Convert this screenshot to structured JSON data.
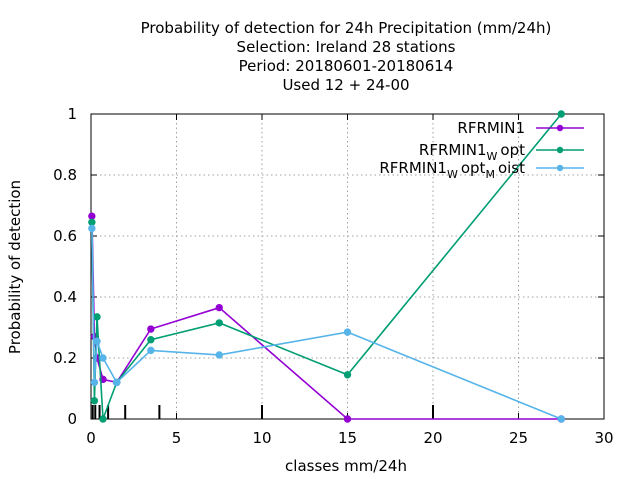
{
  "chart_data": {
    "type": "line",
    "title_lines": [
      "Probability of detection  for 24h Precipitation (mm/24h)",
      "Selection: Ireland     28 stations",
      "Period: 20180601-20180614",
      "Used  12 + 24-00"
    ],
    "xlabel": "classes mm/24h",
    "ylabel": "Probability of detection",
    "xlim": [
      0,
      30
    ],
    "ylim": [
      0,
      1
    ],
    "x_ticks": [
      "0",
      "5",
      "10",
      "15",
      "20",
      "25",
      "30"
    ],
    "y_ticks": [
      "0",
      "0.2",
      "0.4",
      "0.6",
      "0.8",
      "1"
    ],
    "grid": true,
    "legend_position": "top-right",
    "class_markers_x": [
      0.1,
      0.25,
      0.5,
      1,
      2,
      4,
      10,
      20
    ],
    "series": [
      {
        "name_parts": [
          {
            "text": "RFRMIN1",
            "sub": false
          }
        ],
        "color": "#9400d3",
        "x": [
          0.05,
          0.2,
          0.35,
          0.7,
          1.5,
          3.5,
          7.5,
          15,
          27.5
        ],
        "y": [
          0.665,
          0.27,
          0.2,
          0.13,
          0.12,
          0.295,
          0.365,
          0.0,
          0.0
        ]
      },
      {
        "name_parts": [
          {
            "text": "RFRMIN1",
            "sub": false
          },
          {
            "text": "W",
            "sub": true
          },
          {
            "text": "opt",
            "sub": false
          }
        ],
        "color": "#009e73",
        "x": [
          0.05,
          0.2,
          0.35,
          0.7,
          1.5,
          3.5,
          7.5,
          15,
          27.5
        ],
        "y": [
          0.645,
          0.06,
          0.335,
          0.0,
          0.12,
          0.26,
          0.315,
          0.145,
          1.0
        ]
      },
      {
        "name_parts": [
          {
            "text": "RFRMIN1",
            "sub": false
          },
          {
            "text": "W",
            "sub": true
          },
          {
            "text": "opt",
            "sub": false
          },
          {
            "text": "M",
            "sub": true
          },
          {
            "text": "oist",
            "sub": false
          }
        ],
        "color": "#56b4e9",
        "x": [
          0.05,
          0.2,
          0.35,
          0.7,
          1.5,
          3.5,
          7.5,
          15,
          27.5
        ],
        "y": [
          0.625,
          0.12,
          0.255,
          0.2,
          0.12,
          0.225,
          0.21,
          0.285,
          0.0
        ]
      }
    ]
  }
}
